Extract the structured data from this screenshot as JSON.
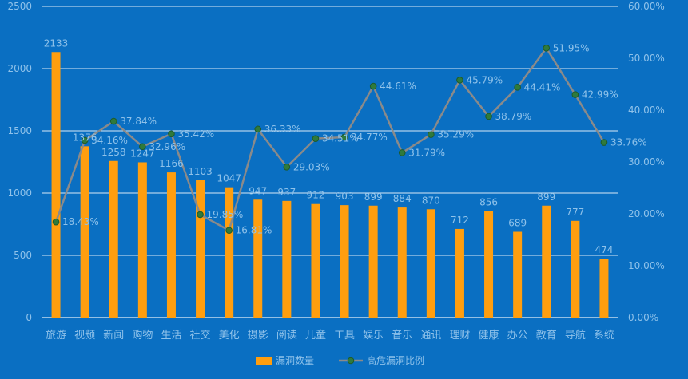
{
  "chart_data": {
    "type": "bar",
    "categories": [
      "旅游",
      "视频",
      "新闻",
      "购物",
      "生活",
      "社交",
      "美化",
      "摄影",
      "阅读",
      "儿童",
      "工具",
      "娱乐",
      "音乐",
      "通讯",
      "理财",
      "健康",
      "办公",
      "教育",
      "导航",
      "系统"
    ],
    "series": [
      {
        "name": "漏洞数量",
        "type": "bar",
        "axis": "left",
        "values": [
          2133,
          1376,
          1258,
          1247,
          1166,
          1103,
          1047,
          947,
          937,
          912,
          903,
          899,
          884,
          870,
          712,
          856,
          689,
          899,
          777,
          474
        ],
        "labels": [
          "2133",
          "1376",
          "1258",
          "1247",
          "1166",
          "1103",
          "1047",
          "947",
          "937",
          "912",
          "903",
          "899",
          "884",
          "870",
          "712",
          "856",
          "689",
          "899",
          "777",
          "474"
        ]
      },
      {
        "name": "高危漏洞比例",
        "type": "line",
        "axis": "right",
        "values": [
          18.43,
          34.16,
          37.84,
          32.96,
          35.42,
          19.85,
          16.81,
          36.33,
          29.03,
          34.51,
          34.77,
          44.61,
          31.79,
          35.29,
          45.79,
          38.79,
          44.41,
          51.95,
          42.99,
          33.76
        ],
        "labels": [
          "18.43%",
          "34.16%",
          "37.84%",
          "32.96%",
          "35.42%",
          "19.85%",
          "16.81%",
          "36.33%",
          "29.03%",
          "34.51%",
          "34.77%",
          "44.61%",
          "31.79%",
          "35.29%",
          "45.79%",
          "38.79%",
          "44.41%",
          "51.95%",
          "42.99%",
          "33.76%"
        ]
      }
    ],
    "left_axis": {
      "min": 0,
      "max": 2500,
      "ticks": [
        "0",
        "500",
        "1000",
        "1500",
        "2000",
        "2500"
      ],
      "tick_values": [
        0,
        500,
        1000,
        1500,
        2000,
        2500
      ]
    },
    "right_axis": {
      "min": 0,
      "max": 60,
      "ticks": [
        "0.00%",
        "10.00%",
        "20.00%",
        "30.00%",
        "40.00%",
        "50.00%",
        "60.00%"
      ],
      "tick_values": [
        0,
        10,
        20,
        30,
        40,
        50,
        60
      ]
    },
    "grid": true,
    "legend_position": "bottom",
    "colors": {
      "background": "#0a6fc2",
      "bar": "#ff9e0f",
      "line": "#8a8a8a",
      "marker_fill": "#2f7a3c",
      "marker_stroke": "#1e5a28",
      "gridline": "#ffffff",
      "text": "#8fc2ea"
    }
  }
}
